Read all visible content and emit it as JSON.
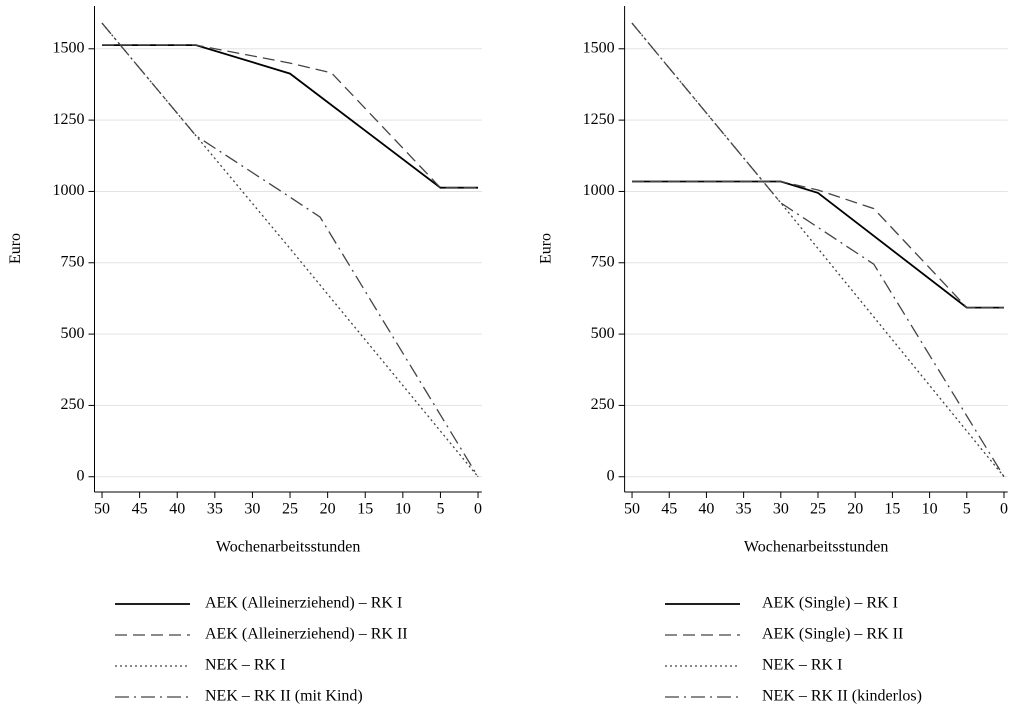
{
  "chart_data": [
    {
      "type": "line",
      "x_label": "Wochenarbeitsstunden",
      "y_label": "Euro",
      "xlim": [
        51,
        -0.5
      ],
      "ylim": [
        -50,
        1650
      ],
      "xticks": [
        50,
        45,
        40,
        35,
        30,
        25,
        20,
        15,
        10,
        5,
        0
      ],
      "yticks": [
        0,
        250,
        500,
        750,
        1000,
        1250,
        1500
      ],
      "grid": true,
      "series": [
        {
          "name": "AEK (Alleinerziehend) – RK I",
          "color": "#000000",
          "dash": "solid",
          "x": [
            50,
            37.5,
            25,
            5,
            0
          ],
          "values": [
            1513,
            1513,
            1413,
            1013,
            1013
          ]
        },
        {
          "name": "AEK (Alleinerziehend) – RK II",
          "color": "#444444",
          "dash": "dashed",
          "x": [
            50,
            37.5,
            25,
            19.5,
            5,
            0
          ],
          "values": [
            1513,
            1513,
            1450,
            1416,
            1013,
            1013
          ]
        },
        {
          "name": "NEK – RK I",
          "color": "#444444",
          "dash": "dotted",
          "x": [
            50,
            37.5,
            25,
            0
          ],
          "values": [
            1590,
            1195,
            800,
            0
          ]
        },
        {
          "name": "NEK – RK II (mit Kind)",
          "color": "#444444",
          "dash": "dashdot",
          "x": [
            50,
            37.5,
            25,
            21,
            0
          ],
          "values": [
            1590,
            1195,
            980,
            910,
            0
          ]
        }
      ]
    },
    {
      "type": "line",
      "x_label": "Wochenarbeitsstunden",
      "y_label": "Euro",
      "xlim": [
        51,
        -0.5
      ],
      "ylim": [
        -50,
        1650
      ],
      "xticks": [
        50,
        45,
        40,
        35,
        30,
        25,
        20,
        15,
        10,
        5,
        0
      ],
      "yticks": [
        0,
        250,
        500,
        750,
        1000,
        1250,
        1500
      ],
      "grid": true,
      "series": [
        {
          "name": "AEK (Single) – RK I",
          "color": "#000000",
          "dash": "solid",
          "x": [
            50,
            30,
            25,
            5,
            0
          ],
          "values": [
            1035,
            1035,
            995,
            593,
            593
          ]
        },
        {
          "name": "AEK (Single) – RK II",
          "color": "#444444",
          "dash": "dashed",
          "x": [
            50,
            30,
            25,
            17.5,
            5,
            0
          ],
          "values": [
            1035,
            1035,
            1005,
            940,
            593,
            593
          ]
        },
        {
          "name": "NEK – RK I",
          "color": "#444444",
          "dash": "dotted",
          "x": [
            50,
            30,
            0
          ],
          "values": [
            1590,
            960,
            0
          ]
        },
        {
          "name": "NEK – RK II (kinderlos)",
          "color": "#444444",
          "dash": "dashdot",
          "x": [
            50,
            30,
            17.5,
            0
          ],
          "values": [
            1590,
            960,
            745,
            0
          ]
        }
      ]
    }
  ]
}
